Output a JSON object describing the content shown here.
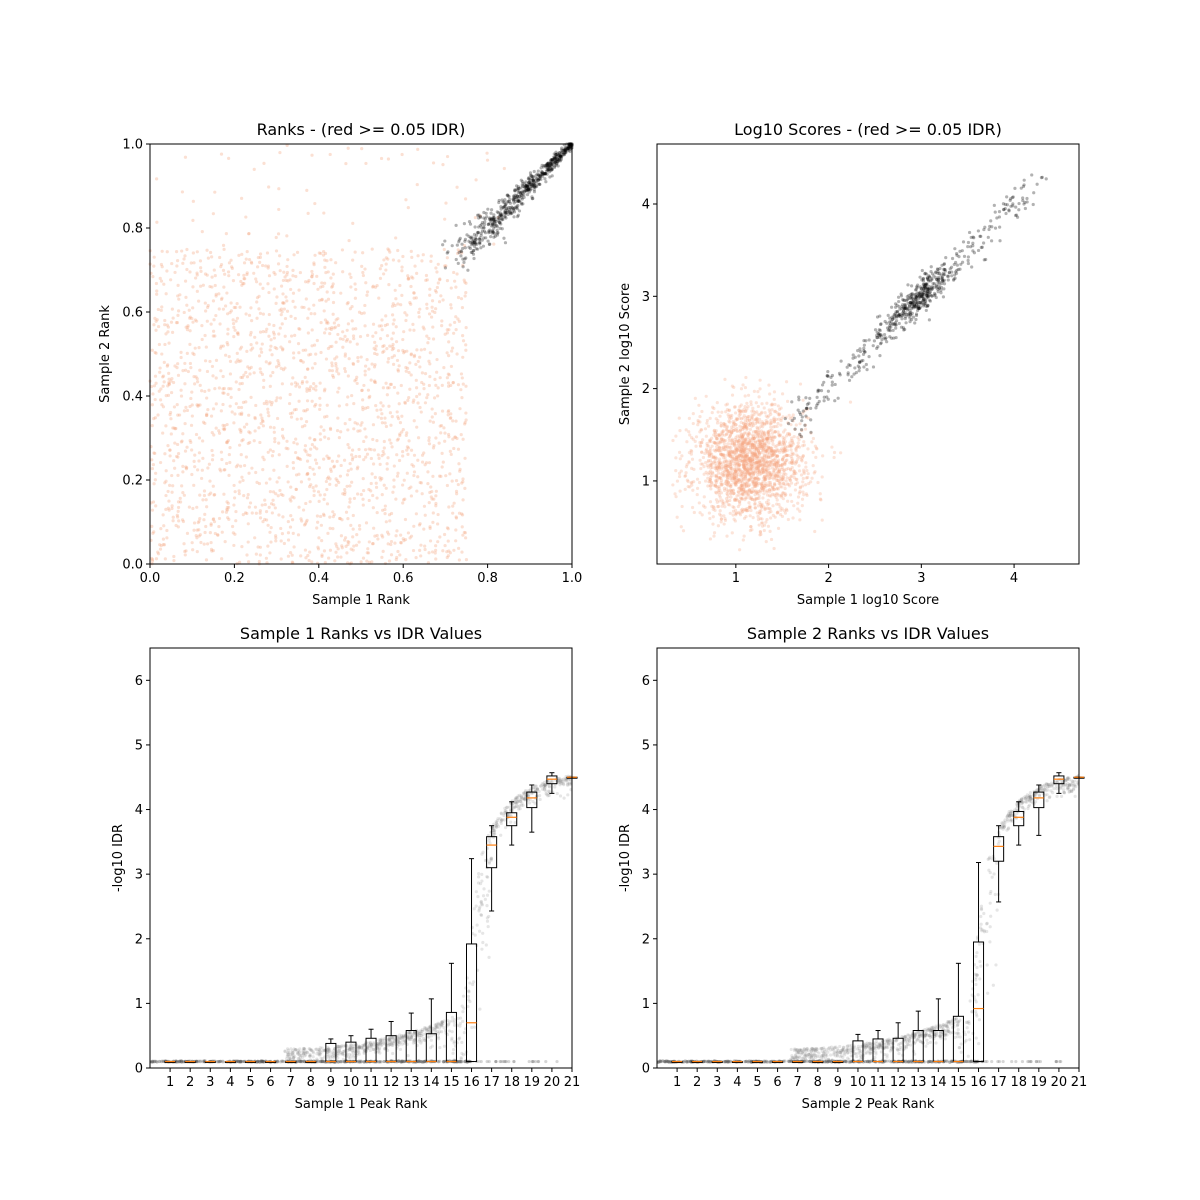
{
  "chart_data": [
    {
      "type": "scatter",
      "title": "Ranks - (red >= 0.05 IDR)",
      "xlabel": "Sample 1 Rank",
      "ylabel": "Sample 2 Rank",
      "xlim": [
        0.0,
        1.0
      ],
      "ylim": [
        0.0,
        1.0
      ],
      "xticks": [
        "0.0",
        "0.2",
        "0.4",
        "0.6",
        "0.8",
        "1.0"
      ],
      "yticks": [
        "0.0",
        "0.2",
        "0.4",
        "0.6",
        "0.8",
        "1.0"
      ],
      "grid": false,
      "colors": {
        "fail": "#f4a582",
        "pass": "#000000"
      },
      "series": [
        {
          "category": "IDR >= 0.05",
          "description": "uniformly scattered, x in [0,0.75], y in [0,0.75]",
          "approx_points": 2000
        },
        {
          "category": "IDR < 0.05",
          "description": "tight diagonal band",
          "x_range": [
            0.72,
            1.0
          ],
          "y_range": [
            0.72,
            1.0
          ],
          "approx_points": 600
        }
      ]
    },
    {
      "type": "scatter",
      "title": "Log10 Scores - (red >= 0.05 IDR)",
      "xlabel": "Sample 1 log10 Score",
      "ylabel": "Sample 2 log10 Score",
      "xlim": [
        0.15,
        4.7
      ],
      "ylim": [
        0.1,
        4.65
      ],
      "xticks": [
        "1",
        "2",
        "3",
        "4"
      ],
      "yticks": [
        "1",
        "2",
        "3",
        "4"
      ],
      "grid": false,
      "colors": {
        "fail": "#f4a582",
        "pass": "#000000"
      },
      "series": [
        {
          "category": "IDR >= 0.05",
          "center": [
            1.15,
            1.2
          ],
          "spread": [
            0.3,
            0.3
          ],
          "approx_points": 2000
        },
        {
          "category": "IDR < 0.05",
          "description": "diagonal band",
          "x_range": [
            1.6,
            4.3
          ],
          "approx_points": 600,
          "cluster_center": [
            3.0,
            3.0
          ]
        }
      ]
    },
    {
      "type": "box",
      "title": "Sample 1 Ranks vs IDR Values",
      "xlabel": "Sample 1 Peak Rank",
      "ylabel": "-log10 IDR",
      "ylim": [
        0,
        6.5
      ],
      "xlim": [
        0,
        21
      ],
      "xticks": [
        "1",
        "2",
        "3",
        "4",
        "5",
        "6",
        "7",
        "8",
        "9",
        "10",
        "11",
        "12",
        "13",
        "14",
        "15",
        "16",
        "17",
        "18",
        "19",
        "20",
        "21"
      ],
      "yticks": [
        "0",
        "1",
        "2",
        "3",
        "4",
        "5",
        "6"
      ],
      "grid": false,
      "colors": {
        "box": "#000000",
        "median": "#ff7f0e",
        "points": "#999999"
      },
      "boxes": [
        {
          "pos": 1,
          "whislo": 0.1,
          "q1": 0.1,
          "med": 0.1,
          "q3": 0.1,
          "whishi": 0.1
        },
        {
          "pos": 2,
          "whislo": 0.1,
          "q1": 0.1,
          "med": 0.1,
          "q3": 0.1,
          "whishi": 0.1
        },
        {
          "pos": 3,
          "whislo": 0.1,
          "q1": 0.1,
          "med": 0.1,
          "q3": 0.1,
          "whishi": 0.1
        },
        {
          "pos": 4,
          "whislo": 0.1,
          "q1": 0.1,
          "med": 0.1,
          "q3": 0.1,
          "whishi": 0.1
        },
        {
          "pos": 5,
          "whislo": 0.1,
          "q1": 0.1,
          "med": 0.1,
          "q3": 0.1,
          "whishi": 0.1
        },
        {
          "pos": 6,
          "whislo": 0.1,
          "q1": 0.1,
          "med": 0.1,
          "q3": 0.1,
          "whishi": 0.1
        },
        {
          "pos": 7,
          "whislo": 0.1,
          "q1": 0.1,
          "med": 0.1,
          "q3": 0.1,
          "whishi": 0.1
        },
        {
          "pos": 8,
          "whislo": 0.1,
          "q1": 0.1,
          "med": 0.1,
          "q3": 0.1,
          "whishi": 0.1
        },
        {
          "pos": 9,
          "whislo": 0.1,
          "q1": 0.1,
          "med": 0.1,
          "q3": 0.38,
          "whishi": 0.45
        },
        {
          "pos": 10,
          "whislo": 0.1,
          "q1": 0.1,
          "med": 0.1,
          "q3": 0.4,
          "whishi": 0.5
        },
        {
          "pos": 11,
          "whislo": 0.1,
          "q1": 0.1,
          "med": 0.1,
          "q3": 0.46,
          "whishi": 0.6
        },
        {
          "pos": 12,
          "whislo": 0.1,
          "q1": 0.1,
          "med": 0.1,
          "q3": 0.5,
          "whishi": 0.72
        },
        {
          "pos": 13,
          "whislo": 0.1,
          "q1": 0.1,
          "med": 0.1,
          "q3": 0.58,
          "whishi": 0.85
        },
        {
          "pos": 14,
          "whislo": 0.1,
          "q1": 0.1,
          "med": 0.1,
          "q3": 0.53,
          "whishi": 1.07
        },
        {
          "pos": 15,
          "whislo": 0.1,
          "q1": 0.1,
          "med": 0.1,
          "q3": 0.86,
          "whishi": 1.62
        },
        {
          "pos": 16,
          "whislo": 0.1,
          "q1": 0.1,
          "med": 0.7,
          "q3": 1.92,
          "whishi": 3.24
        },
        {
          "pos": 17,
          "whislo": 2.43,
          "q1": 3.1,
          "med": 3.45,
          "q3": 3.58,
          "whishi": 3.75
        },
        {
          "pos": 18,
          "whislo": 3.45,
          "q1": 3.75,
          "med": 3.88,
          "q3": 3.95,
          "whishi": 4.12
        },
        {
          "pos": 19,
          "whislo": 3.65,
          "q1": 4.03,
          "med": 4.18,
          "q3": 4.27,
          "whishi": 4.38
        },
        {
          "pos": 20,
          "whislo": 4.25,
          "q1": 4.4,
          "med": 4.47,
          "q3": 4.52,
          "whishi": 4.57
        },
        {
          "pos": 21,
          "whislo": 4.5,
          "q1": 4.5,
          "med": 4.5,
          "q3": 4.5,
          "whishi": 4.5
        }
      ]
    },
    {
      "type": "box",
      "title": "Sample 2 Ranks vs IDR Values",
      "xlabel": "Sample 2 Peak Rank",
      "ylabel": "-log10 IDR",
      "ylim": [
        0,
        6.5
      ],
      "xlim": [
        0,
        21
      ],
      "xticks": [
        "1",
        "2",
        "3",
        "4",
        "5",
        "6",
        "7",
        "8",
        "9",
        "10",
        "11",
        "12",
        "13",
        "14",
        "15",
        "16",
        "17",
        "18",
        "19",
        "20",
        "21"
      ],
      "yticks": [
        "0",
        "1",
        "2",
        "3",
        "4",
        "5",
        "6"
      ],
      "grid": false,
      "colors": {
        "box": "#000000",
        "median": "#ff7f0e",
        "points": "#999999"
      },
      "boxes": [
        {
          "pos": 1,
          "whislo": 0.1,
          "q1": 0.1,
          "med": 0.1,
          "q3": 0.1,
          "whishi": 0.1
        },
        {
          "pos": 2,
          "whislo": 0.1,
          "q1": 0.1,
          "med": 0.1,
          "q3": 0.1,
          "whishi": 0.1
        },
        {
          "pos": 3,
          "whislo": 0.1,
          "q1": 0.1,
          "med": 0.1,
          "q3": 0.1,
          "whishi": 0.1
        },
        {
          "pos": 4,
          "whislo": 0.1,
          "q1": 0.1,
          "med": 0.1,
          "q3": 0.1,
          "whishi": 0.1
        },
        {
          "pos": 5,
          "whislo": 0.1,
          "q1": 0.1,
          "med": 0.1,
          "q3": 0.1,
          "whishi": 0.1
        },
        {
          "pos": 6,
          "whislo": 0.1,
          "q1": 0.1,
          "med": 0.1,
          "q3": 0.1,
          "whishi": 0.1
        },
        {
          "pos": 7,
          "whislo": 0.1,
          "q1": 0.1,
          "med": 0.1,
          "q3": 0.1,
          "whishi": 0.1
        },
        {
          "pos": 8,
          "whislo": 0.1,
          "q1": 0.1,
          "med": 0.1,
          "q3": 0.1,
          "whishi": 0.1
        },
        {
          "pos": 9,
          "whislo": 0.1,
          "q1": 0.1,
          "med": 0.1,
          "q3": 0.1,
          "whishi": 0.1
        },
        {
          "pos": 10,
          "whislo": 0.1,
          "q1": 0.1,
          "med": 0.1,
          "q3": 0.42,
          "whishi": 0.52
        },
        {
          "pos": 11,
          "whislo": 0.1,
          "q1": 0.1,
          "med": 0.1,
          "q3": 0.45,
          "whishi": 0.58
        },
        {
          "pos": 12,
          "whislo": 0.1,
          "q1": 0.1,
          "med": 0.1,
          "q3": 0.46,
          "whishi": 0.7
        },
        {
          "pos": 13,
          "whislo": 0.1,
          "q1": 0.1,
          "med": 0.1,
          "q3": 0.58,
          "whishi": 0.88
        },
        {
          "pos": 14,
          "whislo": 0.1,
          "q1": 0.1,
          "med": 0.1,
          "q3": 0.58,
          "whishi": 1.07
        },
        {
          "pos": 15,
          "whislo": 0.1,
          "q1": 0.1,
          "med": 0.1,
          "q3": 0.8,
          "whishi": 1.62
        },
        {
          "pos": 16,
          "whislo": 0.1,
          "q1": 0.1,
          "med": 0.92,
          "q3": 1.95,
          "whishi": 3.18
        },
        {
          "pos": 17,
          "whislo": 2.57,
          "q1": 3.2,
          "med": 3.43,
          "q3": 3.58,
          "whishi": 3.75
        },
        {
          "pos": 18,
          "whislo": 3.45,
          "q1": 3.75,
          "med": 3.88,
          "q3": 3.97,
          "whishi": 4.12
        },
        {
          "pos": 19,
          "whislo": 3.6,
          "q1": 4.03,
          "med": 4.18,
          "q3": 4.27,
          "whishi": 4.38
        },
        {
          "pos": 20,
          "whislo": 4.25,
          "q1": 4.4,
          "med": 4.47,
          "q3": 4.52,
          "whishi": 4.57
        },
        {
          "pos": 21,
          "whislo": 4.5,
          "q1": 4.5,
          "med": 4.5,
          "q3": 4.5,
          "whishi": 4.5
        }
      ]
    }
  ]
}
